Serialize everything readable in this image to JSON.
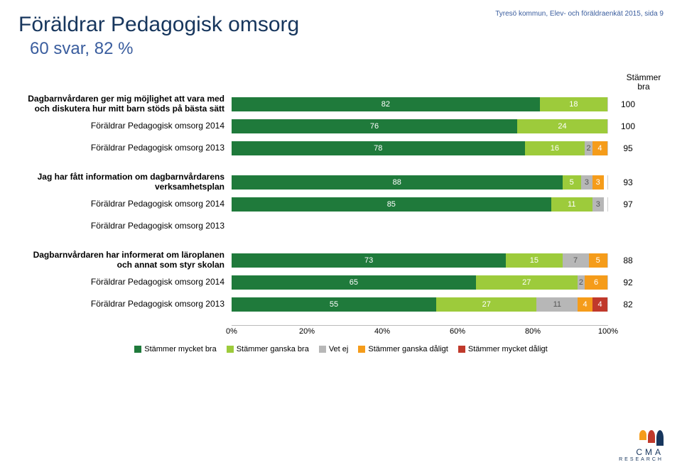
{
  "header_note": "Tyresö kommun, Elev- och föräldraenkät 2015, sida 9",
  "title": "Föräldrar Pedagogisk omsorg",
  "subtitle": "60 svar, 82 %",
  "right_column_header": "Stämmer bra",
  "colors": {
    "c1": "#1f7a3b",
    "c2": "#9dcb3b",
    "c3": "#b7b7b7",
    "c4": "#f59c1a",
    "c5": "#c0392b",
    "title_color": "#17365d",
    "subtitle_color": "#3a5d9e",
    "note_color": "#3a5d9e",
    "bg": "#ffffff"
  },
  "axis": {
    "ticks": [
      {
        "pct": 0,
        "label": "0%"
      },
      {
        "pct": 20,
        "label": "20%"
      },
      {
        "pct": 40,
        "label": "40%"
      },
      {
        "pct": 60,
        "label": "60%"
      },
      {
        "pct": 80,
        "label": "80%"
      },
      {
        "pct": 100,
        "label": "100%"
      }
    ]
  },
  "legend": [
    {
      "color": "#1f7a3b",
      "label": "Stämmer mycket bra"
    },
    {
      "color": "#9dcb3b",
      "label": "Stämmer ganska bra"
    },
    {
      "color": "#b7b7b7",
      "label": "Vet ej"
    },
    {
      "color": "#f59c1a",
      "label": "Stämmer ganska dåligt"
    },
    {
      "color": "#c0392b",
      "label": "Stämmer mycket dåligt"
    }
  ],
  "groups": [
    {
      "rows": [
        {
          "label": "Dagbarnvårdaren ger mig möjlighet att vara med och diskutera hur mitt barn stöds på bästa sätt",
          "bold": true,
          "segs": [
            82,
            18,
            0,
            0,
            0
          ],
          "score": 100
        },
        {
          "label": "Föräldrar Pedagogisk omsorg 2014",
          "bold": false,
          "segs": [
            76,
            24,
            0,
            0,
            0
          ],
          "score": 100
        },
        {
          "label": "Föräldrar Pedagogisk omsorg 2013",
          "bold": false,
          "segs": [
            78,
            16,
            2,
            4,
            0
          ],
          "score": 95
        }
      ]
    },
    {
      "rows": [
        {
          "label": "Jag har fått information om dagbarnvårdarens verksamhetsplan",
          "bold": true,
          "segs": [
            88,
            5,
            3,
            3,
            0
          ],
          "score": 93
        },
        {
          "label": "Föräldrar Pedagogisk omsorg 2014",
          "bold": false,
          "segs": [
            85,
            11,
            3,
            0,
            0
          ],
          "score": 97
        },
        {
          "label": "Föräldrar Pedagogisk omsorg 2013",
          "bold": false,
          "segs": null,
          "score": null
        }
      ]
    },
    {
      "rows": [
        {
          "label": "Dagbarnvårdaren har informerat om läroplanen och annat som styr skolan",
          "bold": true,
          "segs": [
            73,
            15,
            7,
            5,
            0
          ],
          "score": 88
        },
        {
          "label": "Föräldrar Pedagogisk omsorg 2014",
          "bold": false,
          "segs": [
            65,
            27,
            2,
            6,
            0
          ],
          "score": 92
        },
        {
          "label": "Föräldrar Pedagogisk omsorg 2013",
          "bold": false,
          "segs": [
            55,
            27,
            11,
            4,
            4
          ],
          "score": 82
        }
      ]
    }
  ],
  "logo": {
    "name": "CMA",
    "sub": "RESEARCH"
  }
}
